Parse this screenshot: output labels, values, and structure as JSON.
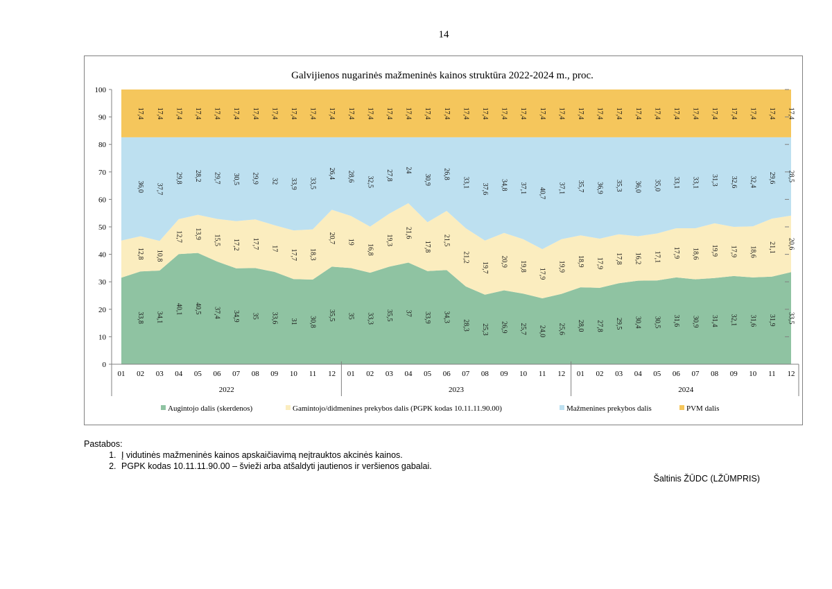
{
  "page_number": "14",
  "notes": {
    "heading": "Pastabos:",
    "items": [
      "Į vidutinės mažmeninės kainos apskaičiavimą neįtrauktos akcinės kainos.",
      "PGPK kodas 10.11.11.90.00 – švieži arba atšaldyti jautienos ir veršienos gabalai."
    ]
  },
  "source": "Šaltinis ŽŪDC (LŽŪMPRIS)",
  "chart_data": {
    "type": "area",
    "stacked": true,
    "title": "Galvijienos nugarinės mažmeninės kainos struktūra 2022-2024 m., proc.",
    "ylim": [
      0,
      100
    ],
    "y_ticks": [
      "0",
      "10",
      "20",
      "30",
      "40",
      "50",
      "60",
      "70",
      "80",
      "90",
      "100"
    ],
    "categories": [
      "01",
      "02",
      "03",
      "04",
      "05",
      "06",
      "07",
      "08",
      "09",
      "10",
      "11",
      "12",
      "01",
      "02",
      "03",
      "04",
      "05",
      "06",
      "07",
      "08",
      "09",
      "10",
      "11",
      "12",
      "01",
      "02",
      "03",
      "04",
      "05",
      "06",
      "07",
      "08",
      "09",
      "10",
      "11",
      "12"
    ],
    "years": [
      "2022",
      "2023",
      "2024"
    ],
    "legend_position": "bottom",
    "series": [
      {
        "name": "Augintojo dalis (skerdenos)",
        "color": "#8fc3a2",
        "values": [
          31.5,
          33.8,
          34.1,
          40.1,
          40.5,
          37.4,
          34.9,
          35,
          33.6,
          31,
          30.8,
          35.5,
          35,
          33.3,
          35.5,
          37,
          33.9,
          34.3,
          28.3,
          25.3,
          26.9,
          25.7,
          24.0,
          25.6,
          28.0,
          27.8,
          29.5,
          30.4,
          30.5,
          31.6,
          30.9,
          31.4,
          32.1,
          31.6,
          31.9,
          33.5
        ],
        "labels": [
          "",
          "33,8",
          "34,1",
          "40,1",
          "40,5",
          "37,4",
          "34,9",
          "35",
          "33,6",
          "31",
          "30,8",
          "35,5",
          "35",
          "33,3",
          "35,5",
          "37",
          "33,9",
          "34,3",
          "28,3",
          "25,3",
          "26,9",
          "25,7",
          "24,0",
          "25,6",
          "28,0",
          "27,8",
          "29,5",
          "30,4",
          "30,5",
          "31,6",
          "30,9",
          "31,4",
          "32,1",
          "31,6",
          "31,9",
          "33,5"
        ]
      },
      {
        "name": "Gamintojo/didmenines prekybos dalis (PGPK kodas 10.11.11.90.00)",
        "color": "#fbedbf",
        "values": [
          13.5,
          12.8,
          10.8,
          12.7,
          13.9,
          15.5,
          17.2,
          17.7,
          17,
          17.7,
          18.3,
          20.7,
          19,
          16.8,
          19.3,
          21.6,
          17.8,
          21.5,
          21.2,
          19.7,
          20.9,
          19.8,
          17.9,
          19.9,
          18.9,
          17.9,
          17.8,
          16.2,
          17.1,
          17.9,
          18.6,
          19.9,
          17.9,
          18.6,
          21.1,
          20.6
        ],
        "labels": [
          "",
          "12,8",
          "10,8",
          "12,7",
          "13,9",
          "15,5",
          "17,2",
          "17,7",
          "17",
          "17,7",
          "18,3",
          "20,7",
          "19",
          "16,8",
          "19,3",
          "21,6",
          "17,8",
          "21,5",
          "21,2",
          "19,7",
          "20,9",
          "19,8",
          "17,9",
          "19,9",
          "18,9",
          "17,9",
          "17,8",
          "16,2",
          "17,1",
          "17,9",
          "18,6",
          "19,9",
          "17,9",
          "18,6",
          "21,1",
          "20,6"
        ]
      },
      {
        "name": "Mažmenines prekybos dalis",
        "color": "#bde0f0",
        "values": [
          37.6,
          36.0,
          37.7,
          29.8,
          28.2,
          29.7,
          30.5,
          29.9,
          32,
          33.9,
          33.5,
          26.4,
          28.6,
          32.5,
          27.8,
          24,
          30.9,
          26.8,
          33.1,
          37.6,
          34.8,
          37.1,
          40.7,
          37.1,
          35.7,
          36.9,
          35.3,
          36.0,
          35.0,
          33.1,
          33.1,
          31.3,
          32.6,
          32.4,
          29.6,
          28.5
        ],
        "labels": [
          "",
          "36,0",
          "37,7",
          "29,8",
          "28,2",
          "29,7",
          "30,5",
          "29,9",
          "32",
          "33,9",
          "33,5",
          "26,4",
          "28,6",
          "32,5",
          "27,8",
          "24",
          "30,9",
          "26,8",
          "33,1",
          "37,6",
          "34,8",
          "37,1",
          "40,7",
          "37,1",
          "35,7",
          "36,9",
          "35,3",
          "36,0",
          "35,0",
          "33,1",
          "33,1",
          "31,3",
          "32,6",
          "32,4",
          "29,6",
          "28,5"
        ]
      },
      {
        "name": "PVM dalis",
        "color": "#f5c65c",
        "values": [
          17.4,
          17.4,
          17.4,
          17.4,
          17.4,
          17.4,
          17.4,
          17.4,
          17.4,
          17.4,
          17.4,
          17.4,
          17.4,
          17.4,
          17.4,
          17.4,
          17.4,
          17.4,
          17.4,
          17.4,
          17.4,
          17.4,
          17.4,
          17.4,
          17.4,
          17.4,
          17.4,
          17.4,
          17.4,
          17.4,
          17.4,
          17.4,
          17.4,
          17.4,
          17.4,
          17.4
        ],
        "labels": [
          "",
          "17,4",
          "17,4",
          "17,4",
          "17,4",
          "17,4",
          "17,4",
          "17,4",
          "17,4",
          "17,4",
          "17,4",
          "17,4",
          "17,4",
          "17,4",
          "17,4",
          "17,4",
          "17,4",
          "17,4",
          "17,4",
          "17,4",
          "17,4",
          "17,4",
          "17,4",
          "17,4",
          "17,4",
          "17,4",
          "17,4",
          "17,4",
          "17,4",
          "17,4",
          "17,4",
          "17,4",
          "17,4",
          "17,4",
          "17,4",
          "17,4"
        ]
      }
    ]
  }
}
